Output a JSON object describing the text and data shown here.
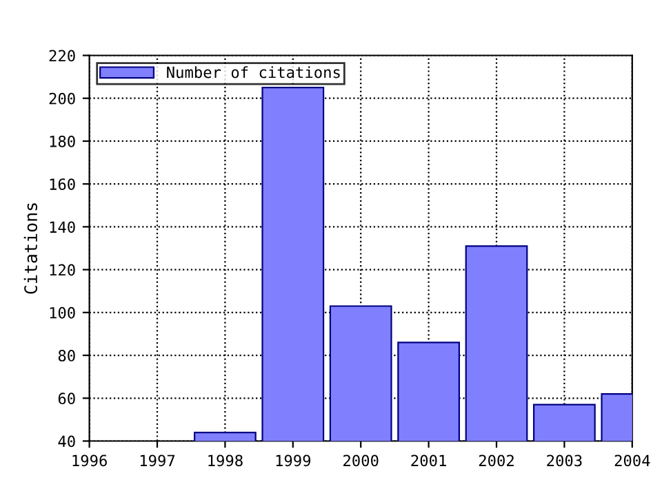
{
  "chart_data": {
    "type": "bar",
    "ylabel": "Citations",
    "x": [
      1998,
      1999,
      2000,
      2001,
      2002,
      2003,
      2004
    ],
    "series": [
      {
        "name": "Number of citations",
        "color": "#8080ff",
        "values": [
          44,
          205,
          103,
          86,
          131,
          57,
          62
        ]
      }
    ],
    "xlim": [
      1996,
      2004
    ],
    "xticks": [
      1996,
      1997,
      1998,
      1999,
      2000,
      2001,
      2002,
      2003,
      2004
    ],
    "ylim": [
      40,
      220
    ],
    "yticks": [
      40,
      60,
      80,
      100,
      120,
      140,
      160,
      180,
      200,
      220
    ],
    "grid": true,
    "legend": "top left"
  }
}
